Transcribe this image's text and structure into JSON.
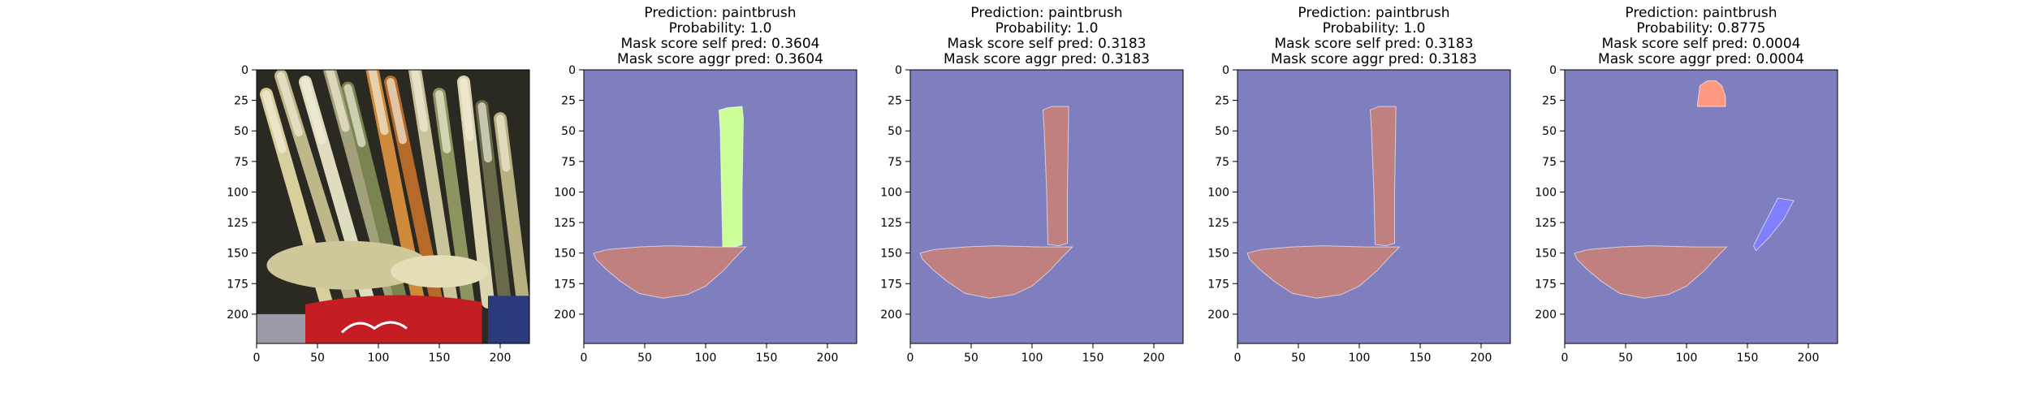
{
  "colors": {
    "background": "#7f7fbf",
    "axes_edge": "#000000",
    "photo_dark": "#2a2a22",
    "photo_can_red": "#c41e24",
    "photo_bristle": "#cfc89a"
  },
  "chart_data": [
    {
      "type": "image",
      "content": "paintbrushes-in-can-photo",
      "title": [],
      "xlim": [
        0,
        224
      ],
      "ylim": [
        224,
        0
      ],
      "xticks": [
        0,
        50,
        100,
        150,
        200
      ],
      "yticks": [
        0,
        25,
        50,
        75,
        100,
        125,
        150,
        175,
        200
      ],
      "regions": []
    },
    {
      "type": "image",
      "content": "segmentation-mask",
      "title": [
        "Prediction: paintbrush",
        "Probability: 1.0",
        "Mask score self pred: 0.3604",
        "Mask score aggr pred: 0.3604"
      ],
      "xlim": [
        0,
        224
      ],
      "ylim": [
        224,
        0
      ],
      "xticks": [
        0,
        50,
        100,
        150,
        200
      ],
      "yticks": [
        0,
        25,
        50,
        75,
        100,
        125,
        150,
        175,
        200
      ],
      "regions": [
        {
          "name": "handle",
          "color": "#ccff99",
          "points": [
            [
              111,
              33
            ],
            [
              118,
              31
            ],
            [
              130,
              30
            ],
            [
              131,
              40
            ],
            [
              130,
              100
            ],
            [
              130,
              143
            ],
            [
              124,
              145
            ],
            [
              114,
              145
            ],
            [
              113,
              100
            ],
            [
              112,
              50
            ]
          ]
        },
        {
          "name": "bristles",
          "color": "#c08080",
          "points": [
            [
              8,
              150
            ],
            [
              20,
              147
            ],
            [
              45,
              145
            ],
            [
              70,
              144
            ],
            [
              105,
              145
            ],
            [
              122,
              145
            ],
            [
              133,
              145
            ],
            [
              125,
              153
            ],
            [
              115,
              164
            ],
            [
              100,
              177
            ],
            [
              85,
              184
            ],
            [
              65,
              187
            ],
            [
              45,
              183
            ],
            [
              30,
              173
            ],
            [
              18,
              163
            ],
            [
              10,
              155
            ]
          ]
        }
      ]
    },
    {
      "type": "image",
      "content": "segmentation-mask",
      "title": [
        "Prediction: paintbrush",
        "Probability: 1.0",
        "Mask score self pred: 0.3183",
        "Mask score aggr pred: 0.3183"
      ],
      "xlim": [
        0,
        224
      ],
      "ylim": [
        224,
        0
      ],
      "xticks": [
        0,
        50,
        100,
        150,
        200
      ],
      "yticks": [
        0,
        25,
        50,
        75,
        100,
        125,
        150,
        175,
        200
      ],
      "regions": [
        {
          "name": "handle",
          "color": "#c08080",
          "points": [
            [
              109,
              33
            ],
            [
              116,
              30
            ],
            [
              130,
              30
            ],
            [
              130,
              40
            ],
            [
              129,
              100
            ],
            [
              129,
              142
            ],
            [
              122,
              144
            ],
            [
              113,
              143
            ],
            [
              112,
              100
            ],
            [
              110,
              50
            ]
          ]
        },
        {
          "name": "bristles",
          "color": "#c08080",
          "points": [
            [
              8,
              150
            ],
            [
              20,
              147
            ],
            [
              45,
              145
            ],
            [
              70,
              144
            ],
            [
              105,
              145
            ],
            [
              122,
              145
            ],
            [
              133,
              145
            ],
            [
              125,
              153
            ],
            [
              115,
              164
            ],
            [
              100,
              177
            ],
            [
              85,
              184
            ],
            [
              65,
              187
            ],
            [
              45,
              183
            ],
            [
              30,
              173
            ],
            [
              18,
              163
            ],
            [
              10,
              155
            ]
          ]
        }
      ]
    },
    {
      "type": "image",
      "content": "segmentation-mask",
      "title": [
        "Prediction: paintbrush",
        "Probability: 1.0",
        "Mask score self pred: 0.3183",
        "Mask score aggr pred: 0.3183"
      ],
      "xlim": [
        0,
        224
      ],
      "ylim": [
        224,
        0
      ],
      "xticks": [
        0,
        50,
        100,
        150,
        200
      ],
      "yticks": [
        0,
        25,
        50,
        75,
        100,
        125,
        150,
        175,
        200
      ],
      "regions": [
        {
          "name": "handle",
          "color": "#c08080",
          "points": [
            [
              109,
              33
            ],
            [
              116,
              30
            ],
            [
              130,
              30
            ],
            [
              130,
              40
            ],
            [
              129,
              100
            ],
            [
              129,
              142
            ],
            [
              122,
              144
            ],
            [
              113,
              143
            ],
            [
              112,
              100
            ],
            [
              110,
              50
            ]
          ]
        },
        {
          "name": "bristles",
          "color": "#c08080",
          "points": [
            [
              8,
              150
            ],
            [
              20,
              147
            ],
            [
              45,
              145
            ],
            [
              70,
              144
            ],
            [
              105,
              145
            ],
            [
              122,
              145
            ],
            [
              133,
              145
            ],
            [
              125,
              153
            ],
            [
              115,
              164
            ],
            [
              100,
              177
            ],
            [
              85,
              184
            ],
            [
              65,
              187
            ],
            [
              45,
              183
            ],
            [
              30,
              173
            ],
            [
              18,
              163
            ],
            [
              10,
              155
            ]
          ]
        }
      ]
    },
    {
      "type": "image",
      "content": "segmentation-mask",
      "title": [
        "Prediction: paintbrush",
        "Probability: 0.8775",
        "Mask score self pred: 0.0004",
        "Mask score aggr pred: 0.0004"
      ],
      "xlim": [
        0,
        224
      ],
      "ylim": [
        224,
        0
      ],
      "xticks": [
        0,
        50,
        100,
        150,
        200
      ],
      "yticks": [
        0,
        25,
        50,
        75,
        100,
        125,
        150,
        175,
        200
      ],
      "regions": [
        {
          "name": "top-patch",
          "color": "#ff9980",
          "points": [
            [
              109,
              28
            ],
            [
              111,
              13
            ],
            [
              117,
              9
            ],
            [
              124,
              9
            ],
            [
              129,
              13
            ],
            [
              132,
              22
            ],
            [
              132,
              30
            ],
            [
              109,
              30
            ]
          ]
        },
        {
          "name": "diagonal-stroke",
          "color": "#7f7fff",
          "points": [
            [
              175,
              105
            ],
            [
              188,
              107
            ],
            [
              180,
              122
            ],
            [
              168,
              137
            ],
            [
              157,
              148
            ],
            [
              155,
              144
            ],
            [
              162,
              130
            ]
          ]
        },
        {
          "name": "bristles",
          "color": "#c08080",
          "points": [
            [
              8,
              150
            ],
            [
              20,
              147
            ],
            [
              45,
              145
            ],
            [
              70,
              144
            ],
            [
              105,
              145
            ],
            [
              122,
              145
            ],
            [
              133,
              145
            ],
            [
              125,
              153
            ],
            [
              115,
              164
            ],
            [
              100,
              177
            ],
            [
              85,
              184
            ],
            [
              65,
              187
            ],
            [
              45,
              183
            ],
            [
              30,
              173
            ],
            [
              18,
              163
            ],
            [
              10,
              155
            ]
          ]
        }
      ]
    }
  ]
}
